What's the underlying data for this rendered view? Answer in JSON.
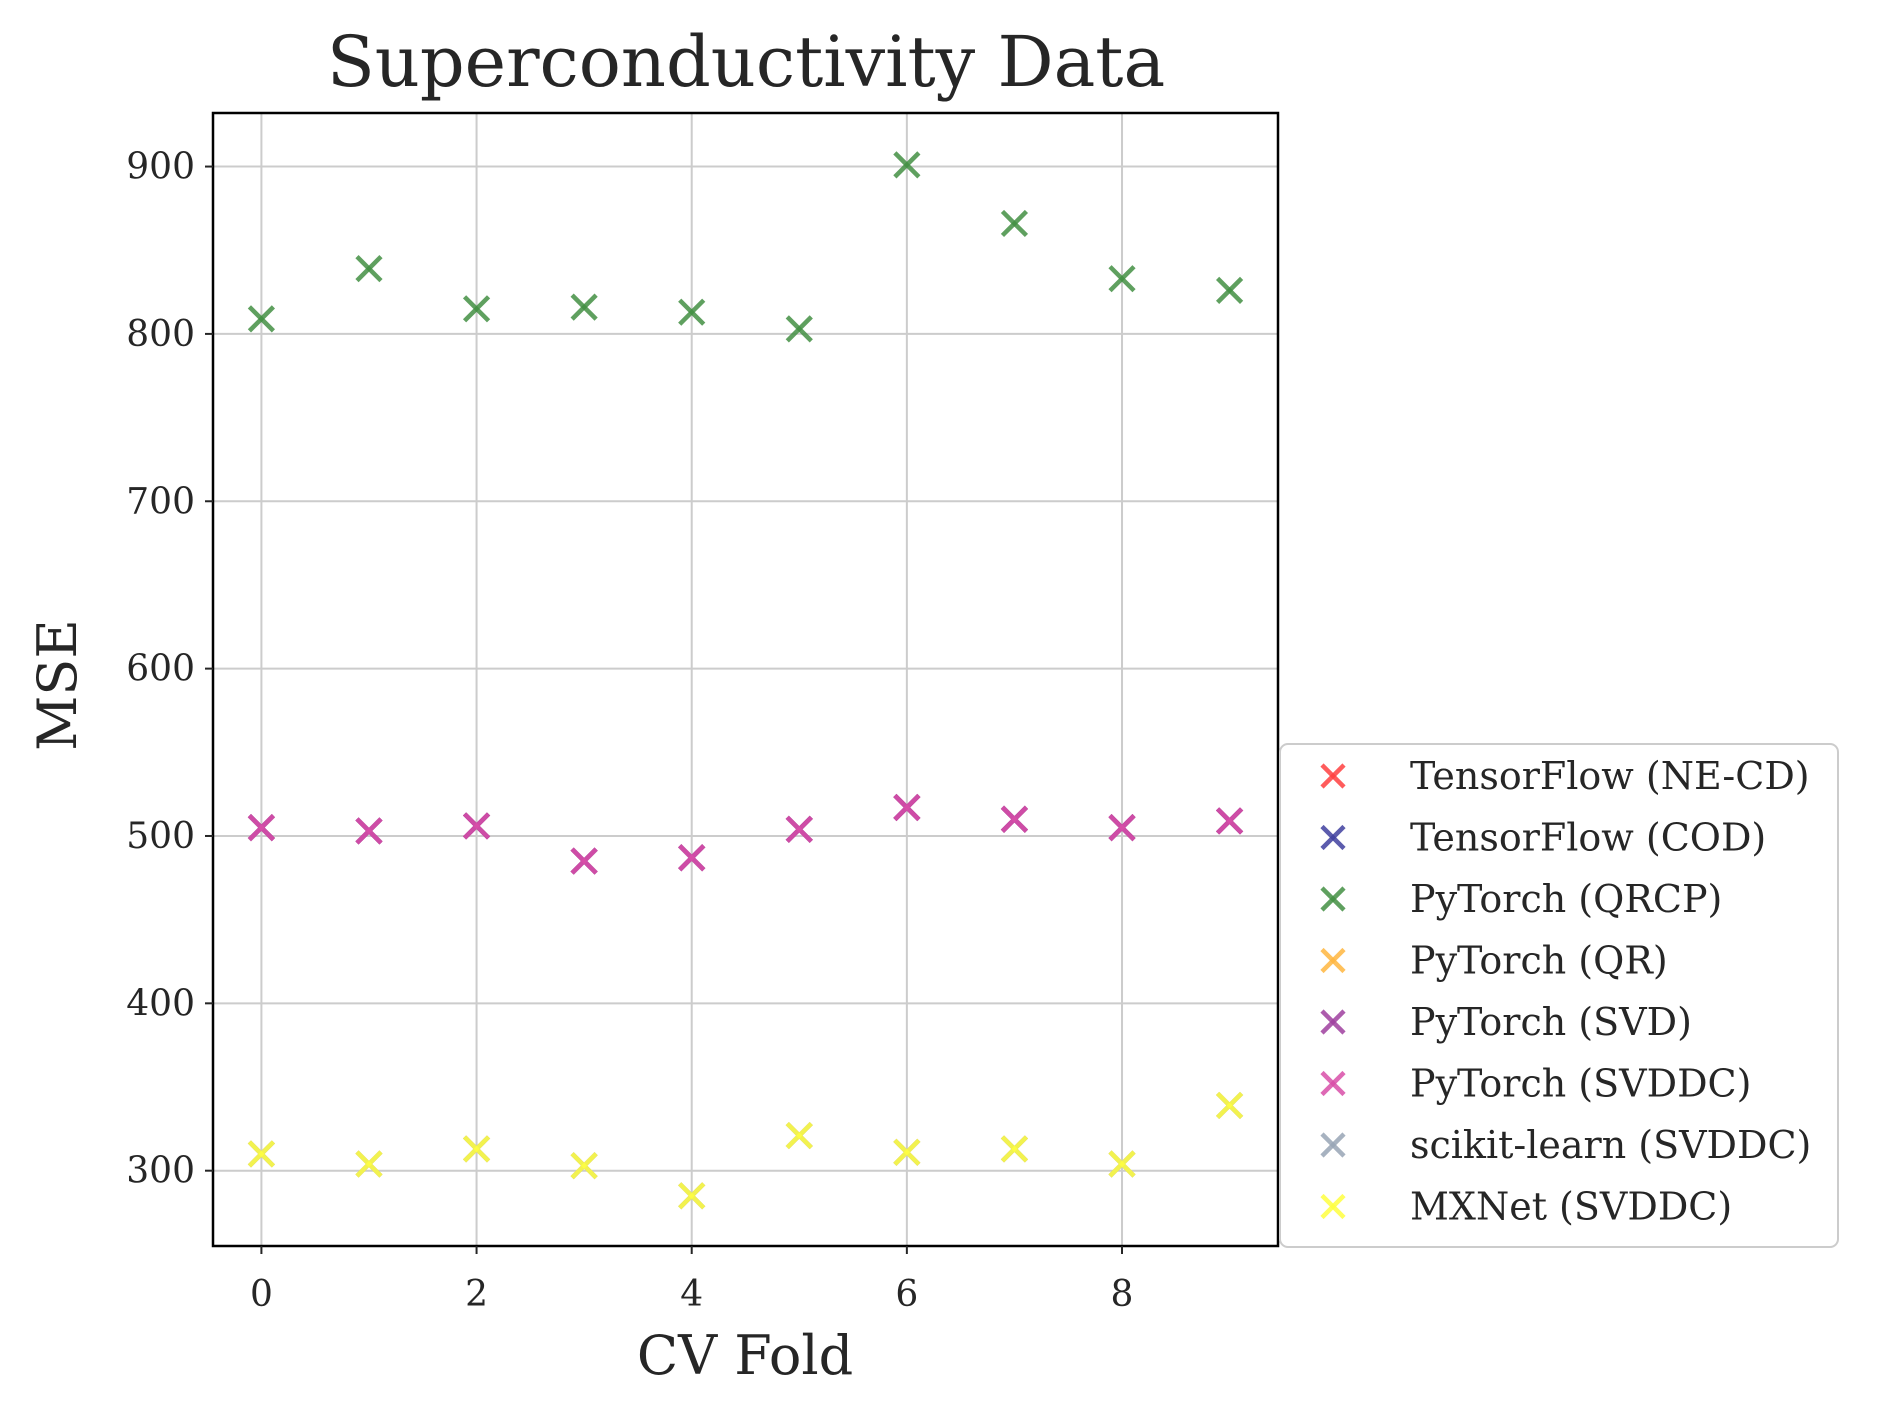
{
  "chart_data": {
    "type": "scatter",
    "title": "Superconductivity Data",
    "xlabel": "CV Fold",
    "ylabel": "MSE",
    "xlim": [
      -0.45,
      9.45
    ],
    "ylim": [
      255,
      932
    ],
    "xticks": [
      0,
      2,
      4,
      6,
      8
    ],
    "yticks": [
      300,
      400,
      500,
      600,
      700,
      800,
      900
    ],
    "grid": true,
    "legend_position": "right",
    "marker": "x",
    "x": [
      0,
      1,
      2,
      3,
      4,
      5,
      6,
      7,
      8,
      9
    ],
    "series": [
      {
        "name": "TensorFlow (NE-CD)",
        "color": "#ff4040",
        "values": [
          505,
          503,
          506,
          485,
          487,
          504,
          517,
          510,
          505,
          509
        ]
      },
      {
        "name": "TensorFlow (COD)",
        "color": "#3f3f9f",
        "values": [
          505,
          503,
          506,
          485,
          487,
          504,
          517,
          510,
          505,
          509
        ]
      },
      {
        "name": "PyTorch (QRCP)",
        "color": "#438f43",
        "values": [
          809,
          839,
          815,
          816,
          813,
          803,
          901,
          866,
          833,
          826
        ]
      },
      {
        "name": "PyTorch (QR)",
        "color": "#ffb640",
        "values": [
          310,
          304,
          313,
          303,
          285,
          321,
          311,
          313,
          304,
          339
        ]
      },
      {
        "name": "PyTorch (SVD)",
        "color": "#9f3f9f",
        "values": [
          505,
          503,
          506,
          485,
          487,
          504,
          517,
          510,
          505,
          509
        ]
      },
      {
        "name": "PyTorch (SVDDC)",
        "color": "#d84fa8",
        "values": [
          505,
          503,
          506,
          485,
          487,
          504,
          517,
          510,
          505,
          509
        ]
      },
      {
        "name": "scikit-learn (SVDDC)",
        "color": "#98a5b5",
        "values": [
          310,
          304,
          313,
          303,
          285,
          321,
          311,
          313,
          304,
          339
        ]
      },
      {
        "name": "MXNet (SVDDC)",
        "color": "#ffff40",
        "values": [
          310,
          304,
          313,
          303,
          285,
          321,
          311,
          313,
          304,
          339
        ]
      }
    ]
  }
}
